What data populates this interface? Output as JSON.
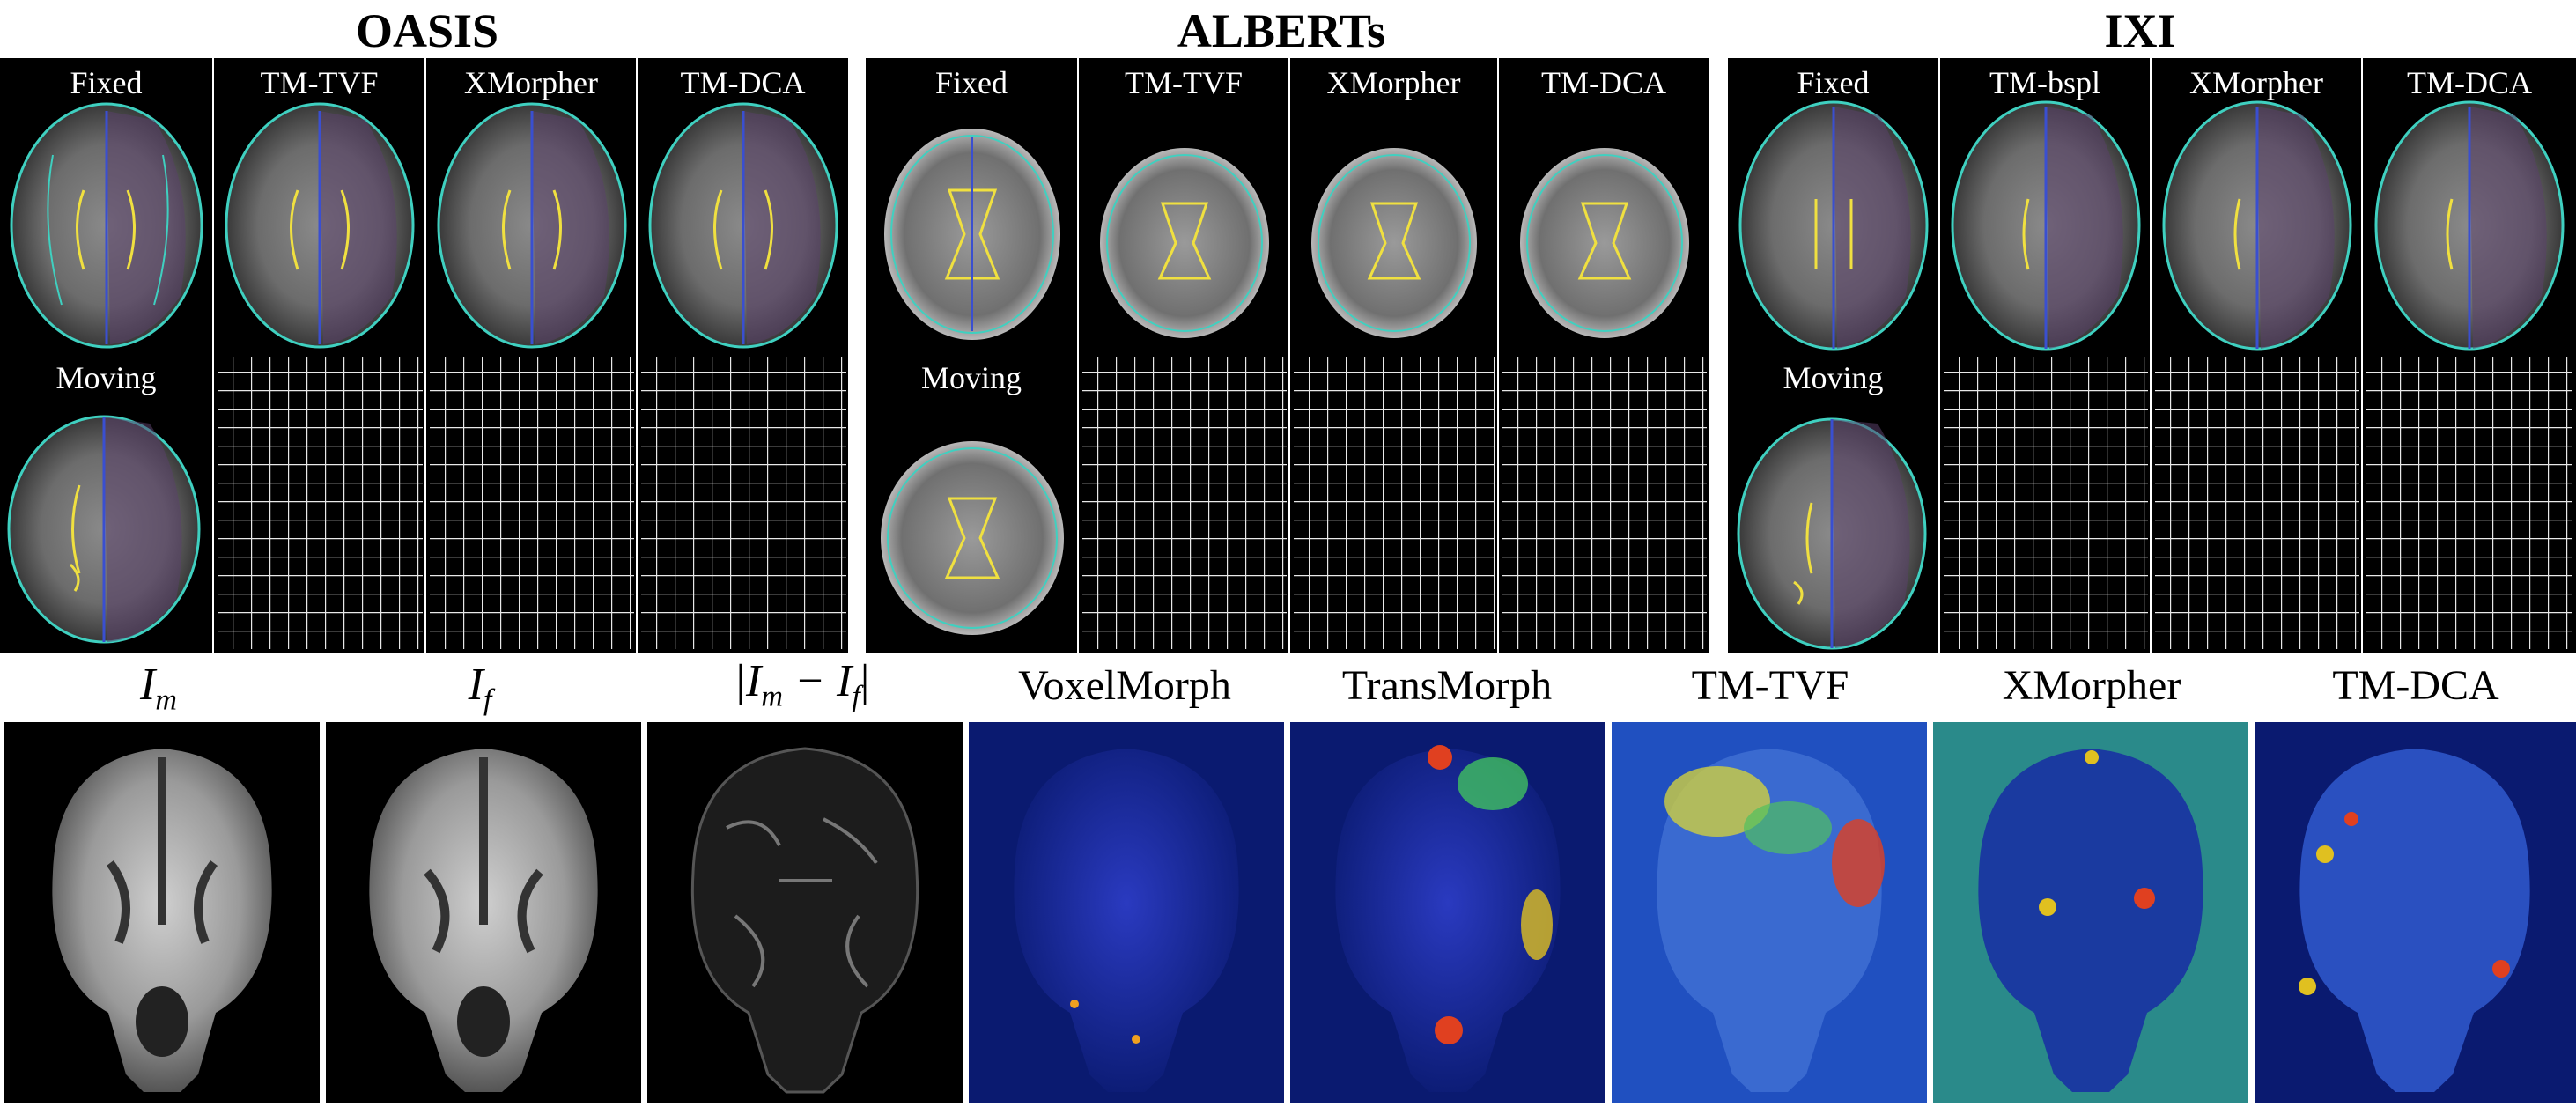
{
  "groups": [
    {
      "title": "OASIS",
      "top_labels": [
        "Fixed",
        "TM-TVF",
        "XMorpher",
        "TM-DCA"
      ],
      "moving_label": "Moving"
    },
    {
      "title": "ALBERTs",
      "top_labels": [
        "Fixed",
        "TM-TVF",
        "XMorpher",
        "TM-DCA"
      ],
      "moving_label": "Moving"
    },
    {
      "title": "IXI",
      "top_labels": [
        "Fixed",
        "TM-bspl",
        "XMorpher",
        "TM-DCA"
      ],
      "moving_label": "Moving"
    }
  ],
  "bottom": {
    "im_base": "I",
    "im_sub": "m",
    "if_base": "I",
    "if_sub": "f",
    "diff_text": "|I",
    "diff_mid": " − I",
    "diff_end": "|",
    "labels": [
      "VoxelMorph",
      "TransMorph",
      "TM-TVF",
      "XMorpher",
      "TM-DCA"
    ]
  },
  "colors": {
    "panel_bg": "#000000",
    "contour_cyan": "#3fd0c0",
    "contour_yellow": "#f0e040",
    "contour_blue": "#3a4fd0",
    "heat_blue": "#0a1a6a"
  }
}
